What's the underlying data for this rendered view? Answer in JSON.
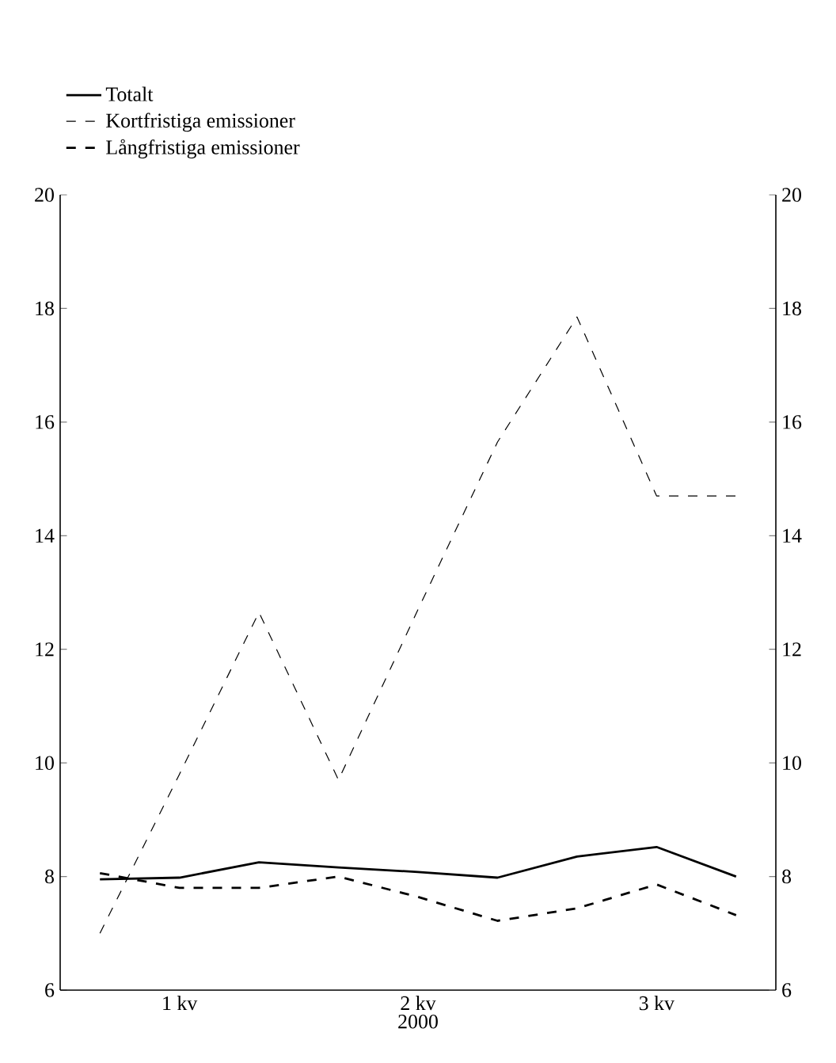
{
  "chart_data": {
    "type": "line",
    "xlabel": "2000",
    "categories": [
      null,
      "1 kv",
      null,
      null,
      "2 kv",
      null,
      null,
      "3 kv",
      null
    ],
    "series": [
      {
        "name": "Totalt",
        "color": "#000000",
        "line_style": "solid",
        "values": [
          7.95,
          7.98,
          8.25,
          8.16,
          8.08,
          7.98,
          8.35,
          8.52,
          8.0
        ]
      },
      {
        "name": "Kortfristiga emissioner",
        "color": "#000000",
        "line_style": "dashed",
        "values": [
          7.0,
          9.8,
          12.65,
          9.7,
          12.7,
          15.65,
          17.85,
          14.7,
          14.7
        ]
      },
      {
        "name": "Långfristiga emissioner",
        "color": "#000000",
        "line_style": "dashed",
        "values": [
          8.06,
          7.8,
          7.8,
          8.0,
          7.64,
          7.22,
          7.44,
          7.86,
          7.32
        ]
      }
    ],
    "ylim": [
      6,
      20
    ],
    "yticks": [
      6,
      8,
      10,
      12,
      14,
      16,
      18,
      20
    ],
    "y2lim": [
      6,
      20
    ],
    "y2ticks": [
      6,
      8,
      10,
      12,
      14,
      16,
      18,
      20
    ],
    "grid": false,
    "legend": "top left",
    "marker": "none"
  }
}
